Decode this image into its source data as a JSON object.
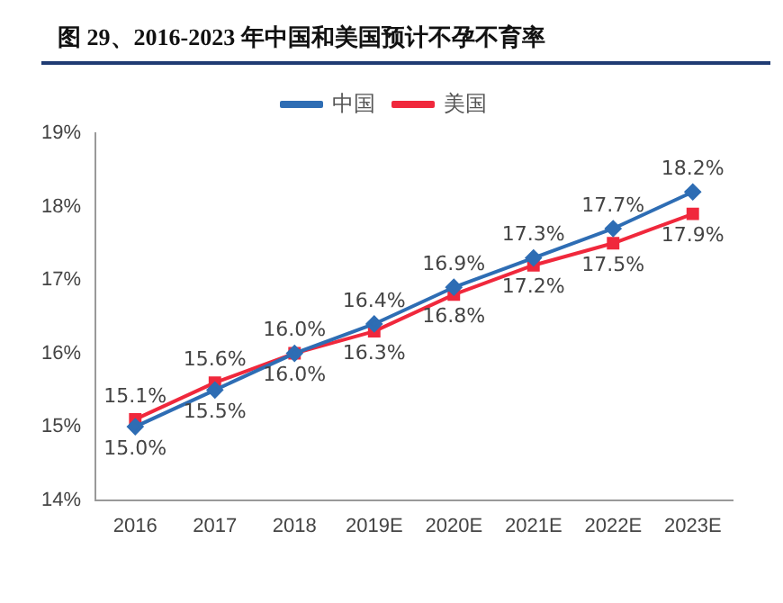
{
  "chart_data": {
    "type": "line",
    "title": "图 29、2016-2023 年中国和美国预计不孕不育率",
    "categories": [
      "2016",
      "2017",
      "2018",
      "2019E",
      "2020E",
      "2021E",
      "2022E",
      "2023E"
    ],
    "series": [
      {
        "name": "中国",
        "color": "#2e6db4",
        "marker": "diamond",
        "values": [
          15.0,
          15.5,
          16.0,
          16.4,
          16.9,
          17.3,
          17.7,
          18.2
        ],
        "value_labels": [
          "15.0%",
          "15.5%",
          "16.0%",
          "16.4%",
          "16.9%",
          "17.3%",
          "17.7%",
          "18.2%"
        ]
      },
      {
        "name": "美国",
        "color": "#f0283c",
        "marker": "square",
        "values": [
          15.1,
          15.6,
          16.0,
          16.3,
          16.8,
          17.2,
          17.5,
          17.9
        ],
        "value_labels": [
          "15.1%",
          "15.6%",
          "16.0%",
          "16.3%",
          "16.8%",
          "17.2%",
          "17.5%",
          "17.9%"
        ]
      }
    ],
    "ylim": [
      14,
      19
    ],
    "yticks": [
      {
        "value": 14,
        "label": "14%"
      },
      {
        "value": 15,
        "label": "15%"
      },
      {
        "value": 16,
        "label": "16%"
      },
      {
        "value": 17,
        "label": "17%"
      },
      {
        "value": 18,
        "label": "18%"
      },
      {
        "value": 19,
        "label": "19%"
      }
    ],
    "legend": "top",
    "grid": false
  }
}
